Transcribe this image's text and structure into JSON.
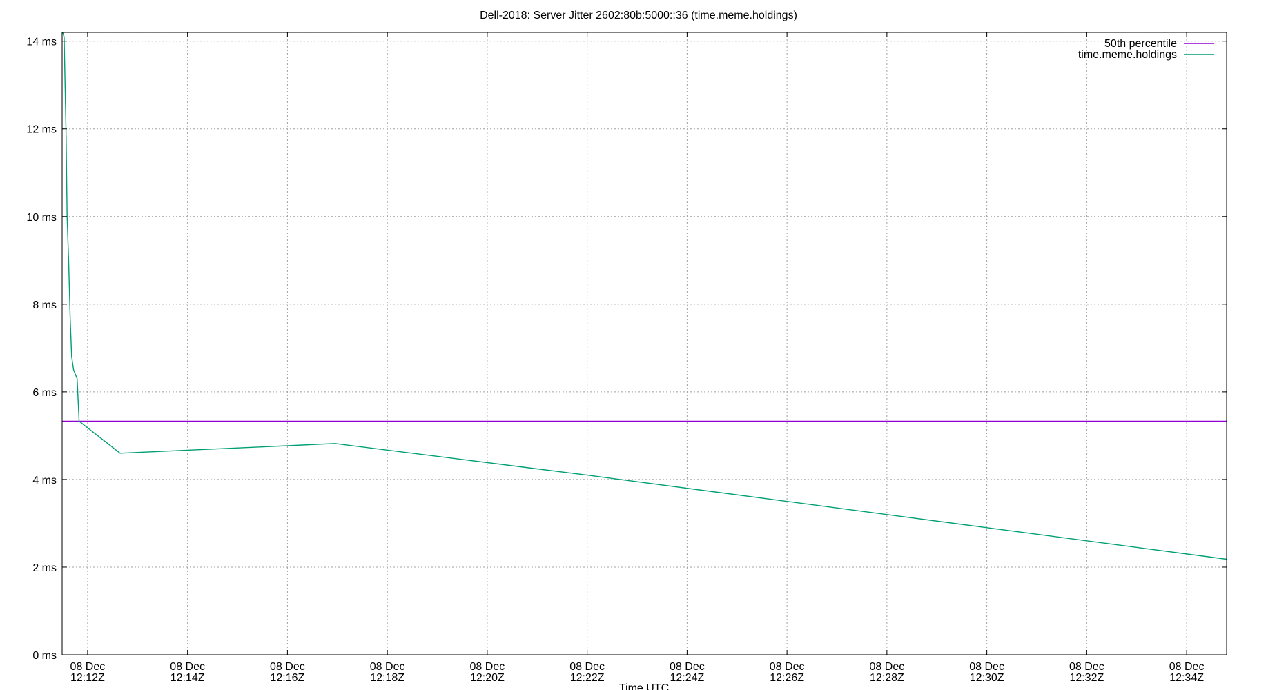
{
  "chart_data": {
    "type": "line",
    "title": "Dell-2018: Server Jitter 2602:80b:5000::36 (time.meme.holdings)",
    "xlabel": "Time UTC",
    "ylabel": "",
    "x_unit": "minutes after 12:11Z on 08 Dec",
    "xlim": [
      0.74,
      24.05
    ],
    "ylim": [
      0,
      14.2
    ],
    "y_ticks": [
      0,
      2,
      4,
      6,
      8,
      10,
      12,
      14
    ],
    "y_tick_labels": [
      "0 ms",
      "2 ms",
      "4 ms",
      "6 ms",
      "8 ms",
      "10 ms",
      "12 ms",
      "14 ms"
    ],
    "x_ticks": [
      1.25,
      3.25,
      5.25,
      7.25,
      9.25,
      11.25,
      13.25,
      15.25,
      17.25,
      19.25,
      21.25,
      23.25
    ],
    "x_tick_labels": [
      [
        "08 Dec",
        "12:12Z"
      ],
      [
        "08 Dec",
        "12:14Z"
      ],
      [
        "08 Dec",
        "12:16Z"
      ],
      [
        "08 Dec",
        "12:18Z"
      ],
      [
        "08 Dec",
        "12:20Z"
      ],
      [
        "08 Dec",
        "12:22Z"
      ],
      [
        "08 Dec",
        "12:24Z"
      ],
      [
        "08 Dec",
        "12:26Z"
      ],
      [
        "08 Dec",
        "12:28Z"
      ],
      [
        "08 Dec",
        "12:30Z"
      ],
      [
        "08 Dec",
        "12:32Z"
      ],
      [
        "08 Dec",
        "12:34Z"
      ]
    ],
    "grid": true,
    "legend_position": "top-right",
    "series": [
      {
        "name": "50th percentile",
        "color": "#9400d3",
        "x": [
          0.74,
          24.05
        ],
        "y": [
          5.33,
          5.33
        ]
      },
      {
        "name": "time.meme.holdings",
        "color": "#009e73",
        "x": [
          0.75,
          0.78,
          0.82,
          0.84,
          0.87,
          0.9,
          0.93,
          0.97,
          1.04,
          1.08,
          1.9,
          5.25,
          6.2,
          11.25,
          24.05
        ],
        "y": [
          14.2,
          14.1,
          11.8,
          10.0,
          9.0,
          7.7,
          6.8,
          6.5,
          6.3,
          5.33,
          4.6,
          4.77,
          4.82,
          4.1,
          2.18
        ]
      }
    ]
  }
}
